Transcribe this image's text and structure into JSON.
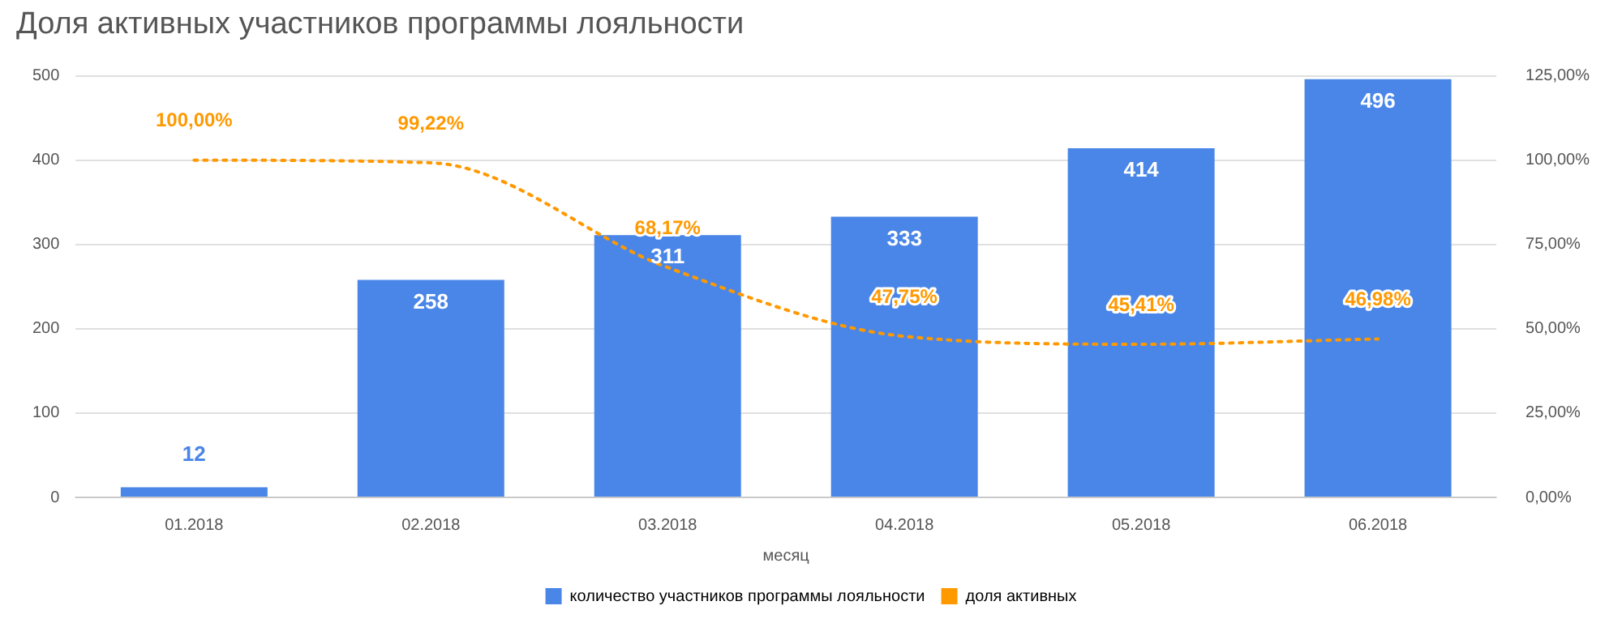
{
  "chart_data": {
    "type": "bar",
    "title": "Доля активных участников программы лояльности",
    "xlabel": "месяц",
    "categories": [
      "01.2018",
      "02.2018",
      "03.2018",
      "04.2018",
      "05.2018",
      "06.2018"
    ],
    "series": [
      {
        "name": "количество участников программы лояльности",
        "color": "#4a86e8",
        "values": [
          12,
          258,
          311,
          333,
          414,
          496
        ]
      },
      {
        "name": "доля активных",
        "type": "line",
        "axis": "y2",
        "color": "#ff9900",
        "line_style": "dotted",
        "marker": "none",
        "values": [
          100,
          99.22,
          68.17,
          47.75,
          45.41,
          46.98
        ],
        "value_labels": [
          "100,00%",
          "99,22%",
          "68,17%",
          "47,75%",
          "45,41%",
          "46,98%"
        ]
      }
    ],
    "data_labels": true,
    "ylim": [
      0,
      500
    ],
    "yticks": [
      0,
      100,
      200,
      300,
      400,
      500
    ],
    "y2lim": [
      0,
      125
    ],
    "y2ticks": [
      {
        "value": 0,
        "label": "0,00%"
      },
      {
        "value": 25,
        "label": "25,00%"
      },
      {
        "value": 50,
        "label": "50,00%"
      },
      {
        "value": 75,
        "label": "75,00%"
      },
      {
        "value": 100,
        "label": "100,00%"
      },
      {
        "value": 125,
        "label": "125,00%"
      }
    ],
    "grid": "y",
    "legend": "bottom"
  }
}
